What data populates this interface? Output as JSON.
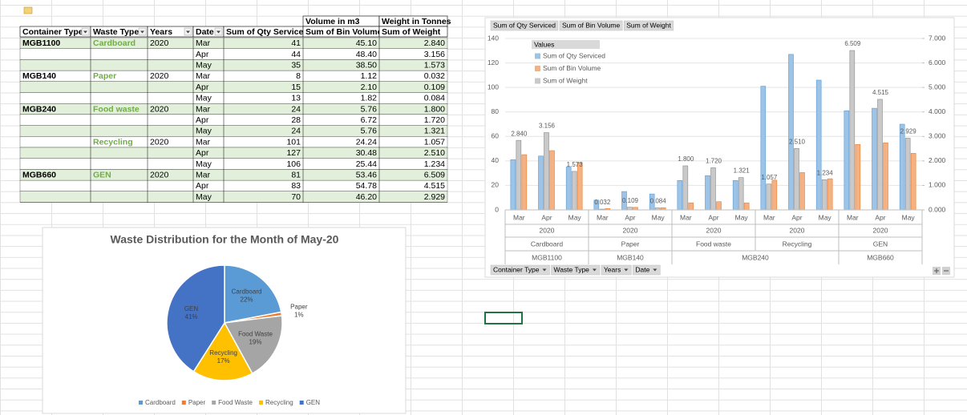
{
  "table": {
    "group_headers": [
      "Volume in m3",
      "Weight in Tonnes"
    ],
    "columns": [
      "Container Type",
      "Waste Type",
      "Years",
      "Date",
      "Sum of Qty Serviced",
      "Sum of Bin Volume",
      "Sum of Weight"
    ],
    "rows": [
      [
        "MGB1100",
        "Cardboard",
        "2020",
        "Mar",
        "41",
        "45.10",
        "2.840"
      ],
      [
        null,
        null,
        null,
        "Apr",
        "44",
        "48.40",
        "3.156"
      ],
      [
        null,
        null,
        null,
        "May",
        "35",
        "38.50",
        "1.573"
      ],
      [
        "MGB140",
        "Paper",
        "2020",
        "Mar",
        "8",
        "1.12",
        "0.032"
      ],
      [
        null,
        null,
        null,
        "Apr",
        "15",
        "2.10",
        "0.109"
      ],
      [
        null,
        null,
        null,
        "May",
        "13",
        "1.82",
        "0.084"
      ],
      [
        "MGB240",
        "Food waste",
        "2020",
        "Mar",
        "24",
        "5.76",
        "1.800"
      ],
      [
        null,
        null,
        null,
        "Apr",
        "28",
        "6.72",
        "1.720"
      ],
      [
        null,
        null,
        null,
        "May",
        "24",
        "5.76",
        "1.321"
      ],
      [
        null,
        "Recycling",
        "2020",
        "Mar",
        "101",
        "24.24",
        "1.057"
      ],
      [
        null,
        null,
        null,
        "Apr",
        "127",
        "30.48",
        "2.510"
      ],
      [
        null,
        null,
        null,
        "May",
        "106",
        "25.44",
        "1.234"
      ],
      [
        "MGB660",
        "GEN",
        "2020",
        "Mar",
        "81",
        "53.46",
        "6.509"
      ],
      [
        null,
        null,
        null,
        "Apr",
        "83",
        "54.78",
        "4.515"
      ],
      [
        null,
        null,
        null,
        "May",
        "70",
        "46.20",
        "2.929"
      ]
    ]
  },
  "chart_data": [
    {
      "type": "bar",
      "categories": [
        "Mar",
        "Apr",
        "May",
        "Mar",
        "Apr",
        "May",
        "Mar",
        "Apr",
        "May",
        "Mar",
        "Apr",
        "May",
        "Mar",
        "Apr",
        "May"
      ],
      "container_groups": [
        {
          "name": "MGB1100",
          "waste_groups": [
            {
              "name": "Cardboard",
              "year": "2020"
            }
          ]
        },
        {
          "name": "MGB140",
          "waste_groups": [
            {
              "name": "Paper",
              "year": "2020"
            }
          ]
        },
        {
          "name": "MGB240",
          "waste_groups": [
            {
              "name": "Food waste",
              "year": "2020"
            },
            {
              "name": "Recycling",
              "year": "2020"
            }
          ]
        },
        {
          "name": "MGB660",
          "waste_groups": [
            {
              "name": "GEN",
              "year": "2020"
            }
          ]
        }
      ],
      "legend_title": "Values",
      "series": [
        {
          "name": "Sum of Qty Serviced",
          "color": "#9dc3e6",
          "axis": "y",
          "values": [
            41,
            44,
            35,
            8,
            15,
            13,
            24,
            28,
            24,
            101,
            127,
            106,
            81,
            83,
            70
          ]
        },
        {
          "name": "Sum of Bin Volume",
          "color": "#f4b183",
          "axis": "y",
          "values": [
            45.1,
            48.4,
            38.5,
            1.12,
            2.1,
            1.82,
            5.76,
            6.72,
            5.76,
            24.24,
            30.48,
            25.44,
            53.46,
            54.78,
            46.2
          ]
        },
        {
          "name": "Sum of Weight",
          "color": "#c9c9c9",
          "axis": "y2",
          "values": [
            2.84,
            3.156,
            1.573,
            0.032,
            0.109,
            0.084,
            1.8,
            1.72,
            1.321,
            1.057,
            2.51,
            1.234,
            6.509,
            4.515,
            2.929
          ],
          "value_labels": [
            "2.840",
            "3.156",
            "1.573",
            "0.032",
            "0.109",
            "0.084",
            "1.800",
            "1.720",
            "1.321",
            "1.057",
            "2.510",
            "1.234",
            "6.509",
            "4.515",
            "2.929"
          ]
        }
      ],
      "ylim": [
        0,
        140
      ],
      "yticks": [
        0,
        20,
        40,
        60,
        80,
        100,
        120,
        140
      ],
      "y2lim": [
        0,
        7
      ],
      "y2ticks": [
        {
          "value": 0,
          "label": "0.000"
        },
        {
          "value": 1,
          "label": "1.000"
        },
        {
          "value": 2,
          "label": "2.000"
        },
        {
          "value": 3,
          "label": "3.000"
        },
        {
          "value": 4,
          "label": "4.000"
        },
        {
          "value": 5,
          "label": "5.000"
        },
        {
          "value": 6,
          "label": "6.000"
        },
        {
          "value": 7,
          "label": "7.000"
        }
      ],
      "grid": true
    },
    {
      "type": "pie",
      "title": "Waste Distribution for the Month of May-20",
      "categories": [
        "Cardboard",
        "Paper",
        "Food Waste",
        "Recycling",
        "GEN"
      ],
      "values": [
        22,
        1,
        19,
        17,
        41
      ],
      "value_labels": [
        "22%",
        "1%",
        "19%",
        "17%",
        "41%"
      ],
      "colors": [
        "#5b9bd5",
        "#ed7d31",
        "#a5a5a5",
        "#ffc000",
        "#4472c4"
      ]
    }
  ]
}
